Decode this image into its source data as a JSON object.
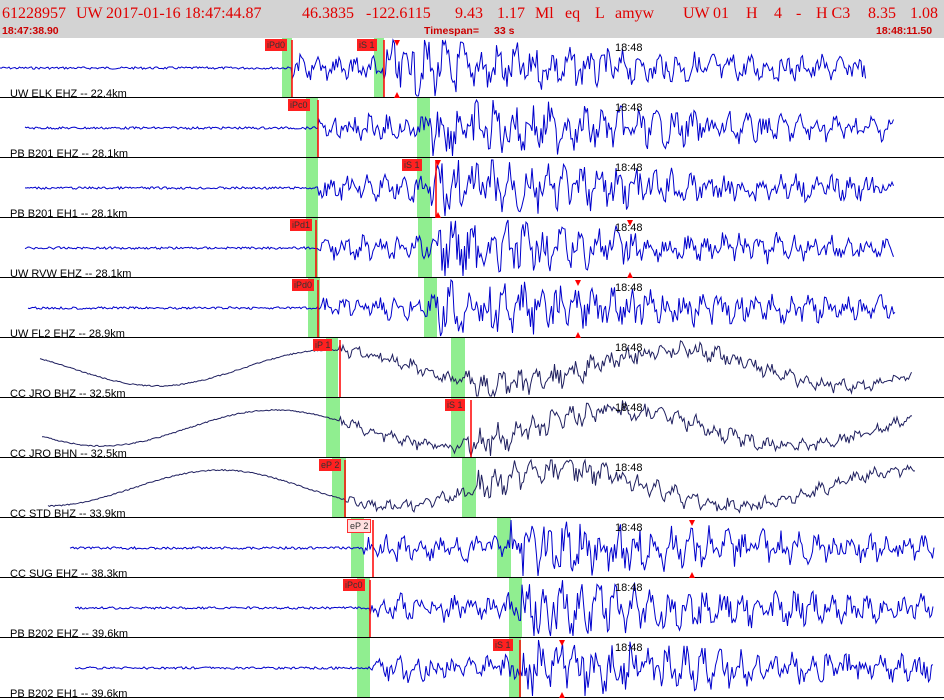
{
  "header": {
    "event_id": "61228957",
    "network": "UW",
    "datetime": "2017-01-16 18:47:44.87",
    "lat": "46.3835",
    "lon": "-122.6115",
    "depth": "9.43",
    "magnitude": "1.17",
    "mag_type": "Ml",
    "event_type": "eq",
    "location_flag": "L",
    "analyst": "amyw",
    "net_code": "UW",
    "version": "01",
    "quality_h": "H",
    "count": "4",
    "dash": "-",
    "class": "H C3",
    "val1": "8.35",
    "val2": "1.08",
    "start_time": "18:47:38.90",
    "timespan_label": "Timespan=",
    "timespan_value": "33 s",
    "end_time": "18:48:11.50"
  },
  "colors": {
    "header_bg": "#d3d3d3",
    "header_text": "#e00000",
    "trace_blue": "#0000cc",
    "trace_navy": "#202060",
    "pick_red": "#ff0000",
    "window_green": "#90ee90"
  },
  "traces": [
    {
      "label": "UW ELK EHZ -- 22.4km",
      "time_mark": "18:48",
      "pick_p": "iPd0",
      "pick_s": "iS 1",
      "color": "blue"
    },
    {
      "label": "PB B201 EHZ -- 28.1km",
      "time_mark": "18:48",
      "pick_p": "iPc0",
      "pick_s": "",
      "color": "blue"
    },
    {
      "label": "PB B201 EH1 -- 28.1km",
      "time_mark": "18:48",
      "pick_p": "",
      "pick_s": "iS 1",
      "color": "blue"
    },
    {
      "label": "UW RVW EHZ -- 28.1km",
      "time_mark": "18:48",
      "pick_p": "iPd1",
      "pick_s": "",
      "color": "blue"
    },
    {
      "label": "UW FL2 EHZ -- 28.9km",
      "time_mark": "18:48",
      "pick_p": "iPd0",
      "pick_s": "",
      "color": "blue"
    },
    {
      "label": "CC JRO BHZ -- 32.5km",
      "time_mark": "18:48",
      "pick_p": "iP 1",
      "pick_s": "",
      "color": "navy"
    },
    {
      "label": "CC JRO BHN -- 32.5km",
      "time_mark": "18:48",
      "pick_p": "",
      "pick_s": "iS 1",
      "color": "navy"
    },
    {
      "label": "CC STD BHZ -- 33.9km",
      "time_mark": "18:48",
      "pick_p": "eP 2",
      "pick_s": "",
      "color": "navy"
    },
    {
      "label": "CC SUG EHZ -- 38.3km",
      "time_mark": "18:48",
      "pick_p": "eP 2",
      "pick_s": "",
      "color": "blue"
    },
    {
      "label": "PB B202 EHZ -- 39.6km",
      "time_mark": "18:48",
      "pick_p": "iPc0",
      "pick_s": "",
      "color": "blue"
    },
    {
      "label": "PB B202 EH1 -- 39.6km",
      "time_mark": "18:48",
      "pick_p": "",
      "pick_s": "iS 1",
      "color": "blue"
    }
  ]
}
